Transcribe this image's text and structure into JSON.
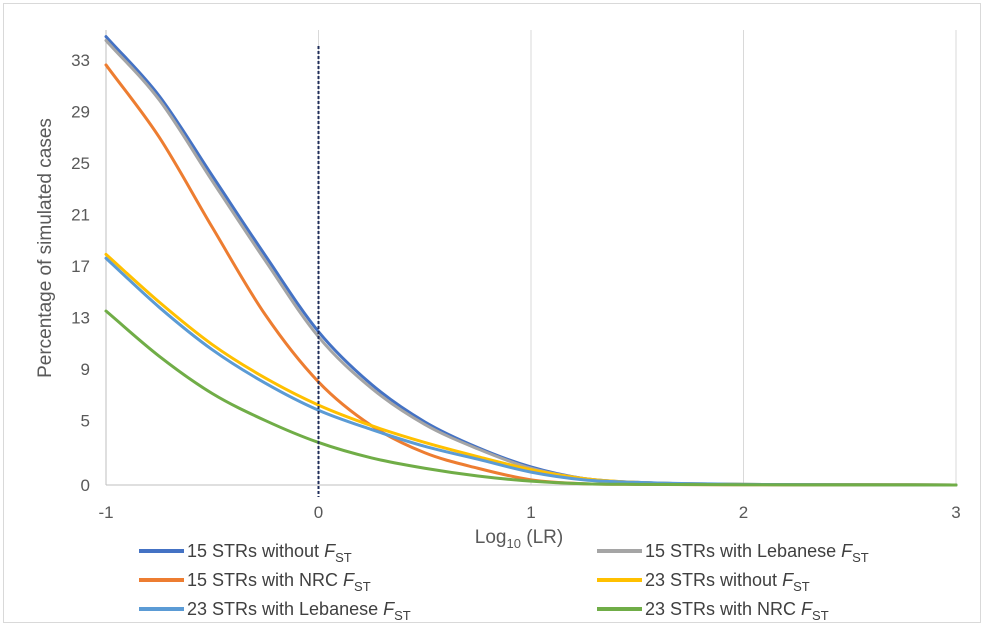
{
  "chart_data": {
    "type": "line",
    "title": "",
    "xlabel": "Log",
    "xlabel_sub": "10",
    "xlabel_tail": " (LR)",
    "ylabel": "Percentage of simulated cases",
    "xlim": [
      -1,
      3
    ],
    "ylim": [
      0,
      35
    ],
    "xticks": [
      -1,
      0,
      1,
      2,
      3
    ],
    "xtick_labels": [
      "-1",
      "0",
      "1",
      "2",
      "3"
    ],
    "yticks": [
      0,
      5,
      9,
      13,
      17,
      21,
      25,
      29,
      33
    ],
    "ytick_labels": [
      "0",
      "5",
      "9",
      "13",
      "17",
      "21",
      "25",
      "29",
      "33"
    ],
    "grid": "vertical",
    "reference_line_x": 0,
    "legend_position": "bottom",
    "series": [
      {
        "name": "15 STRs without F_ST",
        "legend_main": "15 STRs without ",
        "legend_italic": "F",
        "legend_sub": "ST",
        "color": "#4472c4",
        "x": [
          -1,
          -0.75,
          -0.5,
          -0.25,
          0,
          0.25,
          0.5,
          0.75,
          1,
          1.25,
          1.5,
          2,
          2.5,
          3
        ],
        "values": [
          34.8,
          30.2,
          24.0,
          17.8,
          11.9,
          7.8,
          4.9,
          2.9,
          1.4,
          0.5,
          0.2,
          0.05,
          0.02,
          0.0
        ]
      },
      {
        "name": "15 STRs with Lebanese F_ST",
        "legend_main": "15 STRs with Lebanese ",
        "legend_italic": "F",
        "legend_sub": "ST",
        "color": "#a5a5a5",
        "x": [
          -1,
          -0.75,
          -0.5,
          -0.25,
          0,
          0.25,
          0.5,
          0.75,
          1,
          1.25,
          1.5,
          2,
          2.5,
          3
        ],
        "values": [
          34.5,
          29.9,
          23.6,
          17.4,
          11.5,
          7.5,
          4.7,
          2.8,
          1.3,
          0.5,
          0.2,
          0.05,
          0.02,
          0.0
        ]
      },
      {
        "name": "15 STRs with NRC F_ST",
        "legend_main": "15 STRs with NRC ",
        "legend_italic": "F",
        "legend_sub": "ST",
        "color": "#ed7d31",
        "x": [
          -1,
          -0.75,
          -0.5,
          -0.25,
          0,
          0.25,
          0.5,
          0.75,
          1,
          1.25,
          1.5,
          2,
          2.5,
          3
        ],
        "values": [
          32.6,
          27.0,
          20.0,
          13.2,
          8.0,
          4.6,
          2.5,
          1.3,
          0.4,
          0.1,
          0.05,
          0.02,
          0.01,
          0.0
        ]
      },
      {
        "name": "23 STRs without F_ST",
        "legend_main": "23 STRs without ",
        "legend_italic": "F",
        "legend_sub": "ST",
        "color": "#ffc000",
        "x": [
          -1,
          -0.75,
          -0.5,
          -0.25,
          0,
          0.25,
          0.5,
          0.75,
          1,
          1.25,
          1.5,
          2,
          2.5,
          3
        ],
        "values": [
          17.9,
          14.2,
          10.9,
          8.3,
          6.2,
          4.6,
          3.3,
          2.2,
          1.2,
          0.5,
          0.2,
          0.05,
          0.02,
          0.0
        ]
      },
      {
        "name": "23 STRs with Lebanese F_ST",
        "legend_main": "23 STRs with Lebanese ",
        "legend_italic": "F",
        "legend_sub": "ST",
        "color": "#5b9bd5",
        "x": [
          -1,
          -0.75,
          -0.5,
          -0.25,
          0,
          0.25,
          0.5,
          0.75,
          1,
          1.25,
          1.5,
          2,
          2.5,
          3
        ],
        "values": [
          17.6,
          13.8,
          10.5,
          7.9,
          5.8,
          4.3,
          3.0,
          2.0,
          1.0,
          0.4,
          0.2,
          0.05,
          0.02,
          0.0
        ]
      },
      {
        "name": "23 STRs with NRC F_ST",
        "legend_main": "23 STRs with NRC ",
        "legend_italic": "F",
        "legend_sub": "ST",
        "color": "#70ad47",
        "x": [
          -1,
          -0.75,
          -0.5,
          -0.25,
          0,
          0.25,
          0.5,
          0.75,
          1,
          1.25,
          1.5,
          2,
          2.5,
          3
        ],
        "values": [
          13.5,
          10.0,
          7.1,
          5.0,
          3.3,
          2.1,
          1.3,
          0.7,
          0.3,
          0.1,
          0.05,
          0.02,
          0.01,
          0.0
        ]
      }
    ]
  }
}
